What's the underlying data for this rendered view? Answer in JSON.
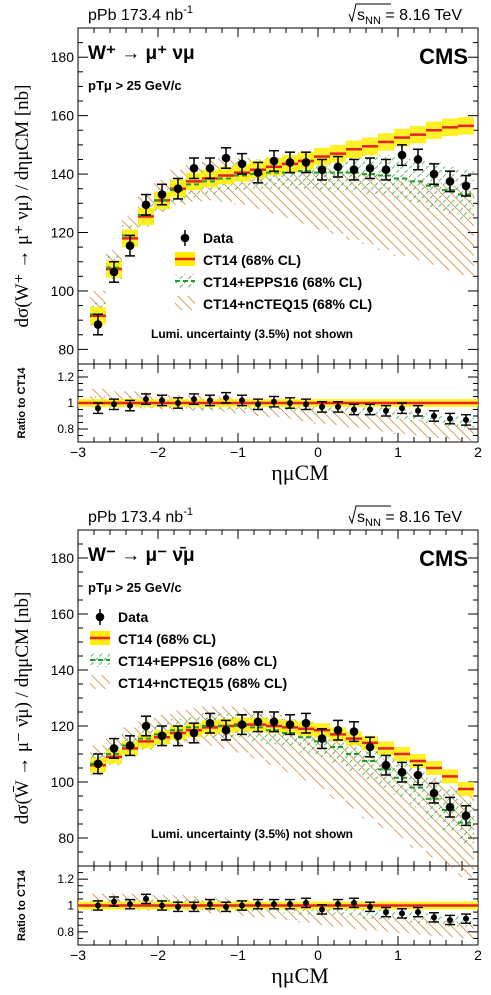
{
  "chart_data": [
    {
      "type": "scatter",
      "panel": "W+",
      "top_left": "pPb 173.4 nb",
      "top_left_sup": "-1",
      "top_right": "8.16 TeV",
      "top_right_prefix": "s",
      "top_right_sub": "NN",
      "experiment": "CMS",
      "process": "W⁺ → μ⁺ νμ",
      "cut": "pTμ > 25 GeV/c",
      "ylabel": "dσ(W⁺ → μ⁺ νμ) / dημCM [nb]",
      "xlabel": "ημCM",
      "ratio_ylabel": "Ratio to CT14",
      "lumi_note": "Lumi. uncertainty (3.5%) not shown",
      "xlim": [
        -3,
        2
      ],
      "ylim": [
        75,
        190
      ],
      "ratio_ylim": [
        0.7,
        1.3
      ],
      "x_ticks": [
        "−3",
        "−2",
        "−1",
        "0",
        "1",
        "2"
      ],
      "y_ticks": [
        "80",
        "100",
        "120",
        "140",
        "160",
        "180"
      ],
      "ratio_ticks": [
        "0.8",
        "1",
        "1.2"
      ],
      "legend": [
        "Data",
        "CT14 (68% CL)",
        "CT14+EPPS16 (68% CL)",
        "CT14+nCTEQ15 (68% CL)"
      ],
      "colors": {
        "data": "#000000",
        "ct14_line": "#e8202a",
        "ct14_band": "#ffee00",
        "epps": "#1e9e28",
        "ncteq": "#c8781e"
      },
      "x": [
        -2.75,
        -2.55,
        -2.35,
        -2.15,
        -1.95,
        -1.75,
        -1.55,
        -1.35,
        -1.15,
        -0.95,
        -0.75,
        -0.55,
        -0.35,
        -0.15,
        0.05,
        0.25,
        0.45,
        0.65,
        0.85,
        1.05,
        1.25,
        1.45,
        1.65,
        1.85
      ],
      "data_values": [
        88.5,
        106.5,
        115.5,
        129.5,
        133,
        135,
        142,
        142,
        145.5,
        143.5,
        140.5,
        144.5,
        144,
        144,
        141.5,
        142.5,
        141.5,
        142,
        141.5,
        146.5,
        145,
        140,
        137.5,
        136
      ],
      "data_errors": [
        3.5,
        3.5,
        3.5,
        3.5,
        3.5,
        3.5,
        3.5,
        3.5,
        3.5,
        3.5,
        3.5,
        3.5,
        3.5,
        3.5,
        3.5,
        3.5,
        3.5,
        3.5,
        3.5,
        3.5,
        3.5,
        3.5,
        3.5,
        3.5
      ],
      "ct14_central": [
        91.5,
        107.5,
        118,
        125.5,
        131,
        135,
        137.5,
        138.5,
        139.5,
        140.5,
        141.5,
        142.5,
        143.5,
        144.5,
        146,
        147,
        148.5,
        149.5,
        151,
        152.5,
        153.5,
        155,
        156,
        156.5
      ],
      "ct14_half_width": [
        3,
        3,
        3,
        3,
        3,
        3,
        3,
        3,
        3,
        3,
        3,
        3,
        3,
        3,
        3,
        3,
        3,
        3,
        3,
        3,
        3,
        3,
        3,
        3
      ],
      "epps_central": [
        92,
        108,
        119,
        126,
        131,
        134.5,
        136.5,
        137.5,
        138.5,
        139.5,
        140,
        140.5,
        140.5,
        141,
        140.5,
        140.5,
        140.5,
        140,
        139.5,
        138.5,
        137.5,
        136,
        134.5,
        133
      ],
      "epps_half_width": [
        4,
        4,
        4,
        4,
        4,
        4,
        4.5,
        4.5,
        4.5,
        5,
        5,
        5.5,
        5.5,
        6,
        6,
        6.5,
        6.5,
        7,
        7,
        7.5,
        7.5,
        8,
        8,
        8.5
      ],
      "ncteq_central": [
        96,
        110,
        121,
        128,
        132.5,
        135.5,
        137,
        138,
        138,
        137.5,
        136.5,
        135.5,
        134.5,
        133,
        131.5,
        130.5,
        129,
        128,
        126.5,
        125,
        124,
        123,
        121.5,
        120.5
      ],
      "ncteq_half_width": [
        4,
        4,
        4.5,
        5,
        5.5,
        6,
        6.5,
        7,
        7.5,
        8,
        8.5,
        9,
        9.5,
        10,
        10.5,
        11,
        11.5,
        12,
        12.5,
        13,
        13.5,
        14,
        14.5,
        15
      ],
      "ratio_values": [
        0.96,
        0.99,
        0.98,
        1.03,
        1.02,
        1.0,
        1.03,
        1.02,
        1.04,
        1.02,
        0.99,
        1.01,
        1.0,
        0.99,
        0.97,
        0.97,
        0.95,
        0.95,
        0.94,
        0.96,
        0.94,
        0.9,
        0.88,
        0.87
      ],
      "ratio_errors": [
        0.04,
        0.04,
        0.04,
        0.04,
        0.04,
        0.04,
        0.04,
        0.04,
        0.04,
        0.04,
        0.04,
        0.04,
        0.04,
        0.04,
        0.04,
        0.04,
        0.04,
        0.04,
        0.04,
        0.04,
        0.04,
        0.04,
        0.04,
        0.04
      ],
      "ratio_epps": [
        1.01,
        1.0,
        1.01,
        1.0,
        1.0,
        1.0,
        0.99,
        0.99,
        0.99,
        0.99,
        0.99,
        0.99,
        0.98,
        0.97,
        0.96,
        0.96,
        0.95,
        0.94,
        0.93,
        0.91,
        0.9,
        0.88,
        0.86,
        0.85
      ],
      "ratio_ncteq": [
        1.05,
        1.03,
        1.03,
        1.02,
        1.01,
        1.0,
        1.0,
        1.0,
        0.99,
        0.98,
        0.96,
        0.95,
        0.94,
        0.92,
        0.9,
        0.89,
        0.87,
        0.86,
        0.84,
        0.82,
        0.81,
        0.79,
        0.78,
        0.77
      ]
    },
    {
      "type": "scatter",
      "panel": "W-",
      "top_left": "pPb 173.4 nb",
      "top_left_sup": "-1",
      "top_right": "8.16 TeV",
      "top_right_prefix": "s",
      "top_right_sub": "NN",
      "experiment": "CMS",
      "process": "W⁻ → μ⁻ ν̄μ",
      "cut": "pTμ > 25 GeV/c",
      "ylabel": "dσ(W̄ → μ⁻ ν̄μ) / dημCM [nb]",
      "xlabel": "ημCM",
      "ratio_ylabel": "Ratio to CT14",
      "lumi_note": "Lumi. uncertainty (3.5%) not shown",
      "xlim": [
        -3,
        2
      ],
      "ylim": [
        70,
        190
      ],
      "ratio_ylim": [
        0.7,
        1.3
      ],
      "x_ticks": [
        "−3",
        "−2",
        "−1",
        "0",
        "1",
        "2"
      ],
      "y_ticks": [
        "80",
        "100",
        "120",
        "140",
        "160",
        "180"
      ],
      "ratio_ticks": [
        "0.8",
        "1",
        "1.2"
      ],
      "legend": [
        "Data",
        "CT14 (68% CL)",
        "CT14+EPPS16 (68% CL)",
        "CT14+nCTEQ15 (68% CL)"
      ],
      "colors": {
        "data": "#000000",
        "ct14_line": "#e8202a",
        "ct14_band": "#ffee00",
        "epps": "#1e9e28",
        "ncteq": "#c8781e"
      },
      "x": [
        -2.75,
        -2.55,
        -2.35,
        -2.15,
        -1.95,
        -1.75,
        -1.55,
        -1.35,
        -1.15,
        -0.95,
        -0.75,
        -0.55,
        -0.35,
        -0.15,
        0.05,
        0.25,
        0.45,
        0.65,
        0.85,
        1.05,
        1.25,
        1.45,
        1.65,
        1.85
      ],
      "data_values": [
        106.5,
        112,
        113,
        120,
        116.5,
        116.5,
        117.5,
        121,
        118.5,
        120.5,
        121.5,
        121.5,
        120.5,
        121,
        115.5,
        118.5,
        118,
        112.5,
        106,
        103.5,
        102.5,
        96,
        91,
        88
      ],
      "data_errors": [
        3.5,
        3.5,
        3.5,
        3.5,
        3.5,
        3.5,
        3.5,
        3.5,
        3.5,
        3.5,
        3.5,
        3.5,
        3.5,
        3.5,
        3.5,
        3.5,
        3.5,
        3.5,
        3.5,
        3.5,
        3.5,
        3.5,
        3.5,
        3.5
      ],
      "ct14_central": [
        106,
        109,
        112,
        114.5,
        116,
        117.5,
        118.5,
        119.5,
        120,
        120.5,
        120.5,
        120,
        119.5,
        119,
        118.5,
        117,
        115.5,
        114,
        112,
        110,
        107.5,
        105,
        102,
        97.5
      ],
      "ct14_half_width": [
        2.5,
        2.5,
        2.5,
        2.5,
        2.5,
        2.5,
        2.5,
        2.5,
        2.5,
        2.5,
        2.5,
        2.5,
        2.5,
        2.5,
        2.5,
        2.5,
        2.5,
        2.5,
        2.5,
        2.5,
        2.5,
        2.5,
        2.5,
        2.5
      ],
      "epps_central": [
        106.5,
        110,
        113,
        115.5,
        117,
        118.5,
        119.5,
        120,
        120,
        120,
        119.5,
        118.5,
        117.5,
        116,
        114.5,
        112.5,
        110,
        107.5,
        104.5,
        101.5,
        98,
        94,
        90,
        85.5
      ],
      "epps_half_width": [
        4,
        4,
        4,
        4,
        4,
        4,
        4,
        4.5,
        4.5,
        4.5,
        5,
        5,
        5,
        5.5,
        5.5,
        6,
        6,
        6.5,
        6.5,
        7,
        7,
        7.5,
        7.5,
        8
      ],
      "ncteq_central": [
        109,
        112,
        115,
        117,
        118.5,
        119.5,
        120,
        120,
        119.5,
        118.5,
        117,
        115,
        113,
        110.5,
        108,
        105,
        102,
        99,
        96,
        93,
        90,
        87,
        84,
        81
      ],
      "ncteq_half_width": [
        4,
        4,
        4.5,
        5,
        5.5,
        6,
        6.5,
        7,
        7.5,
        8,
        8.5,
        9,
        9.5,
        10,
        10.5,
        11,
        11.5,
        12,
        12.5,
        13,
        13.5,
        14,
        14.5,
        15
      ],
      "ratio_values": [
        1.0,
        1.03,
        1.01,
        1.05,
        1.0,
        0.99,
        0.99,
        1.01,
        0.99,
        1.0,
        1.01,
        1.01,
        1.01,
        1.02,
        0.97,
        1.01,
        1.02,
        0.99,
        0.95,
        0.94,
        0.95,
        0.91,
        0.89,
        0.9
      ],
      "ratio_errors": [
        0.035,
        0.035,
        0.035,
        0.035,
        0.035,
        0.035,
        0.035,
        0.035,
        0.035,
        0.035,
        0.035,
        0.035,
        0.035,
        0.035,
        0.035,
        0.035,
        0.035,
        0.035,
        0.035,
        0.035,
        0.035,
        0.035,
        0.035,
        0.035
      ],
      "ratio_epps": [
        1.0,
        1.01,
        1.01,
        1.01,
        1.01,
        1.01,
        1.01,
        1.0,
        1.0,
        1.0,
        0.99,
        0.99,
        0.98,
        0.97,
        0.97,
        0.96,
        0.95,
        0.94,
        0.93,
        0.92,
        0.91,
        0.9,
        0.88,
        0.88
      ],
      "ratio_ncteq": [
        1.03,
        1.03,
        1.03,
        1.02,
        1.02,
        1.02,
        1.01,
        1.0,
        1.0,
        0.98,
        0.97,
        0.96,
        0.95,
        0.93,
        0.91,
        0.9,
        0.88,
        0.87,
        0.86,
        0.85,
        0.84,
        0.83,
        0.82,
        0.81
      ]
    }
  ]
}
